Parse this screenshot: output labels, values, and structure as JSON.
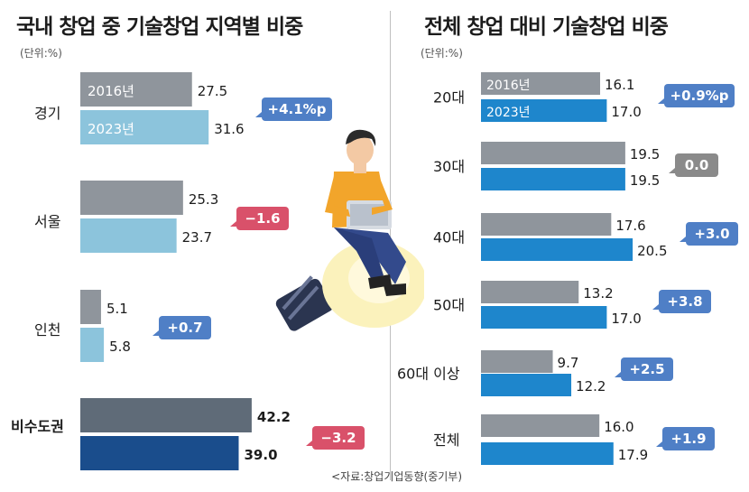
{
  "left": {
    "title": "국내 창업 중 기술창업 지역별 비중",
    "unit": "(단위:%)"
  },
  "right": {
    "title": "전체 창업 대비 기술창업 비중",
    "unit": "(단위:%)"
  },
  "source": "<자료:창업기업동향(중기부)",
  "colors": {
    "gray_2016": "#8f959c",
    "blue_light_2023": "#8cc4dc",
    "blue_2023": "#1e86cc",
    "metro_2016": "#5f6b78",
    "metro_2023": "#1a4d8c",
    "badge_positive": "#4f7fc6",
    "badge_negative": "#d9516a",
    "badge_zero": "#8a8a8a"
  },
  "chart_data": [
    {
      "type": "bar",
      "title": "국내 창업 중 기술창업 지역별 비중",
      "unit": "(단위:%)",
      "orientation": "horizontal",
      "categories": [
        "경기",
        "서울",
        "인천",
        "비수도권"
      ],
      "series": [
        {
          "name": "2016년",
          "values": [
            27.5,
            25.3,
            5.1,
            42.2
          ]
        },
        {
          "name": "2023년",
          "values": [
            31.6,
            23.7,
            5.8,
            39.0
          ]
        }
      ],
      "value_labels_2016": [
        "27.5",
        "25.3",
        "5.1",
        "42.2"
      ],
      "value_labels_2023": [
        "31.6",
        "23.7",
        "5.8",
        "39.0"
      ],
      "change_labels": [
        "+4.1%p",
        "−1.6",
        "+0.7",
        "−3.2"
      ],
      "change_signs": [
        "pos",
        "neg",
        "pos",
        "neg"
      ]
    },
    {
      "type": "bar",
      "title": "전체 창업 대비 기술창업 비중",
      "unit": "(단위:%)",
      "orientation": "horizontal",
      "categories": [
        "20대",
        "30대",
        "40대",
        "50대",
        "60대 이상",
        "전체"
      ],
      "series": [
        {
          "name": "2016년",
          "values": [
            16.1,
            19.5,
            17.6,
            13.2,
            9.7,
            16.0
          ]
        },
        {
          "name": "2023년",
          "values": [
            17.0,
            19.5,
            20.5,
            17.0,
            12.2,
            17.9
          ]
        }
      ],
      "value_labels_2016": [
        "16.1",
        "19.5",
        "17.6",
        "13.2",
        "9.7",
        "16.0"
      ],
      "value_labels_2023": [
        "17.0",
        "19.5",
        "20.5",
        "17.0",
        "12.2",
        "17.9"
      ],
      "change_labels": [
        "+0.9%p",
        "0.0",
        "+3.0",
        "+3.8",
        "+2.5",
        "+1.9"
      ],
      "change_signs": [
        "pos",
        "zero",
        "pos",
        "pos",
        "pos",
        "pos"
      ]
    }
  ]
}
